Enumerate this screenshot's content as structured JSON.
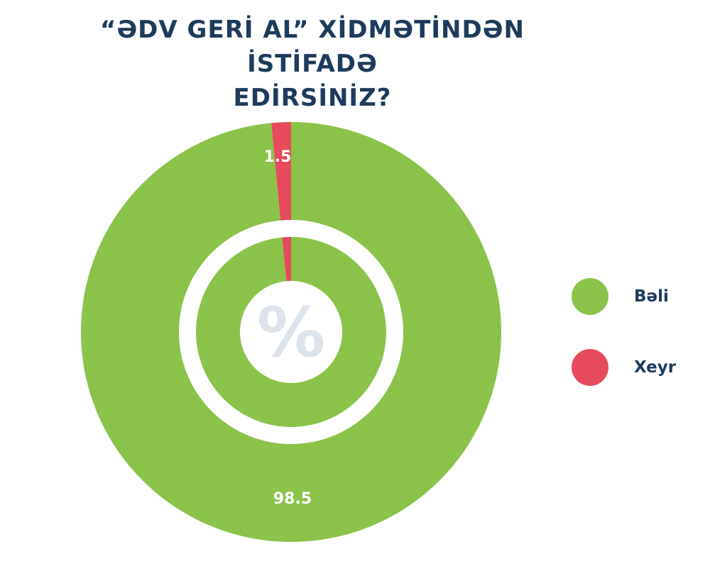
{
  "chart_data": {
    "type": "pie",
    "variant": "nested-donut",
    "title": "“ƏDV GERİ AL” XİDMƏTİNDƏN İSTİFADƏ EDİRSİNİZ?",
    "title_lines": [
      "“ƏDV GERİ AL” XİDMƏTİNDƏN İSTİFADƏ",
      "EDİRSİNİZ?"
    ],
    "categories": [
      "Bəli",
      "Xeyr"
    ],
    "values": [
      98.5,
      1.5
    ],
    "data_labels": [
      "98.5",
      "1.5"
    ],
    "colors": [
      "#8bc34a",
      "#e64a5c"
    ],
    "center_symbol": "%",
    "legend_position": "right"
  }
}
